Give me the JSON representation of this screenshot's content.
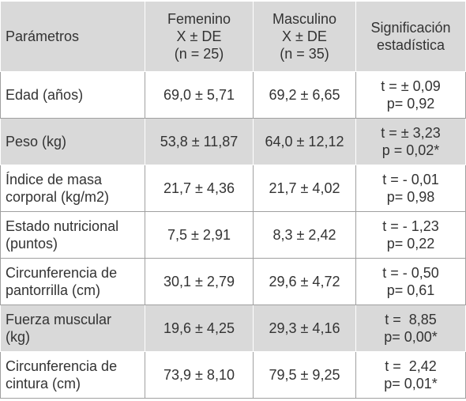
{
  "table": {
    "header": [
      [
        "Parámetros"
      ],
      [
        "Femenino",
        "X ± DE",
        "(n = 25)"
      ],
      [
        "Masculino",
        "X ± DE",
        "(n = 35)"
      ],
      [
        "Significación",
        "estadística"
      ]
    ],
    "rows": [
      [
        [
          "Edad (años)"
        ],
        [
          "69,0 ± 5,71"
        ],
        [
          "69,2 ± 6,65"
        ],
        [
          "t = ± 0,09",
          "p= 0,92"
        ]
      ],
      [
        [
          "Peso (kg)"
        ],
        [
          "53,8 ± 11,87"
        ],
        [
          "64,0 ± 12,12"
        ],
        [
          "t = ± 3,23",
          "p = 0,02*"
        ]
      ],
      [
        [
          "Índice de masa",
          "corporal (kg/m2)"
        ],
        [
          "21,7 ± 4,36"
        ],
        [
          "21,7 ± 4,02"
        ],
        [
          "t = - 0,01",
          "p= 0,98"
        ]
      ],
      [
        [
          "Estado nutricional",
          "(puntos)"
        ],
        [
          "7,5 ± 2,91"
        ],
        [
          "8,3 ± 2,42"
        ],
        [
          "t = - 1,23",
          "p= 0,22"
        ]
      ],
      [
        [
          "Circunferencia de",
          "pantorrilla (cm)"
        ],
        [
          "30,1 ± 2,79"
        ],
        [
          "29,6 ± 4,72"
        ],
        [
          "t = - 0,50",
          "p= 0,61"
        ]
      ],
      [
        [
          "Fuerza muscular",
          "(kg)"
        ],
        [
          "19,6 ± 4,25"
        ],
        [
          "29,3 ± 4,16"
        ],
        [
          "t =  8,85",
          "p= 0,00*"
        ]
      ],
      [
        [
          "Circunferencia de",
          "cintura (cm)"
        ],
        [
          "73,9 ± 8,10"
        ],
        [
          "79,5 ± 9,25"
        ],
        [
          "t =  2,42",
          "p= 0,01*"
        ]
      ]
    ]
  }
}
